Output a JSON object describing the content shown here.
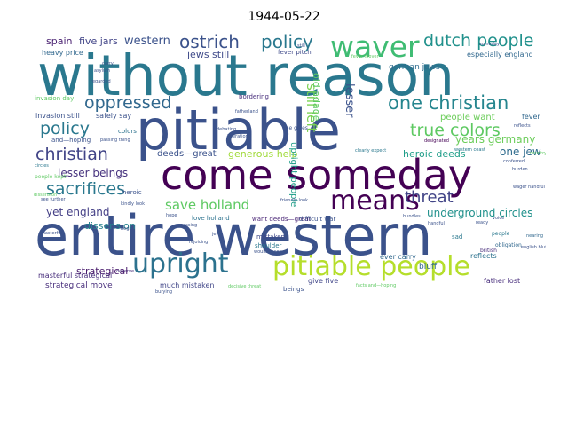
{
  "title": "1944-05-22",
  "words": [
    {
      "text": "without reason",
      "color": "#2a788e"
    },
    {
      "text": "pitiable",
      "color": "#3b528b"
    },
    {
      "text": "entire western",
      "color": "#3b528b"
    },
    {
      "text": "come someday",
      "color": "#440154"
    },
    {
      "text": "waver",
      "color": "#3fbc73"
    },
    {
      "text": "upright",
      "color": "#2c728e"
    },
    {
      "text": "pitiable people",
      "color": "#b5de2b"
    },
    {
      "text": "means",
      "color": "#440154"
    },
    {
      "text": "ostrich",
      "color": "#3b528b"
    },
    {
      "text": "policy",
      "color": "#2a788e"
    },
    {
      "text": "dutch people",
      "color": "#21918c"
    },
    {
      "text": "one christian",
      "color": "#25858e"
    },
    {
      "text": "true colors",
      "color": "#5ec962"
    },
    {
      "text": "policy",
      "color": "#2a788e"
    },
    {
      "text": "oppressed",
      "color": "#31688e"
    },
    {
      "text": "christian",
      "color": "#414487"
    },
    {
      "text": "sacrifices",
      "color": "#2a788e"
    },
    {
      "text": "save holland",
      "color": "#5ec962"
    },
    {
      "text": "threat",
      "color": "#414487"
    },
    {
      "text": "western",
      "color": "#3b528b"
    },
    {
      "text": "five jars",
      "color": "#414487"
    },
    {
      "text": "spain",
      "color": "#481f70"
    },
    {
      "text": "jews still",
      "color": "#3e4989"
    },
    {
      "text": "people want",
      "color": "#6ccd5a"
    },
    {
      "text": "years germany",
      "color": "#6ccd5a"
    },
    {
      "text": "one jew",
      "color": "#2f6c8e"
    },
    {
      "text": "heroic deeds",
      "color": "#1f9e89"
    },
    {
      "text": "generous help",
      "color": "#a0da39"
    },
    {
      "text": "deeds—great",
      "color": "#3b528b"
    },
    {
      "text": "lesser beings",
      "color": "#46327e"
    },
    {
      "text": "yet england",
      "color": "#433e85"
    },
    {
      "text": "dissension",
      "color": "#26828e"
    },
    {
      "text": "underground circles",
      "color": "#21918c"
    },
    {
      "text": "strategical",
      "color": "#481a6c"
    },
    {
      "text": "masterful strategical",
      "color": "#472d7b"
    },
    {
      "text": "strategical move",
      "color": "#472d7b"
    },
    {
      "text": "much mistaken",
      "color": "#404688"
    },
    {
      "text": "give five",
      "color": "#404688"
    },
    {
      "text": "still left",
      "color": "#7ad151"
    },
    {
      "text": "old adage",
      "color": "#5ec962"
    },
    {
      "text": "lesser",
      "color": "#3b528b"
    },
    {
      "text": "upright people",
      "color": "#1f9e89"
    },
    {
      "text": "german jews",
      "color": "#2f6c8e"
    },
    {
      "text": "especially england",
      "color": "#31688e"
    },
    {
      "text": "fever pitch",
      "color": "#3e4989"
    },
    {
      "text": "heavy price",
      "color": "#31688e"
    },
    {
      "text": "invasion day",
      "color": "#5ec962"
    },
    {
      "text": "invasion still",
      "color": "#3b528b"
    },
    {
      "text": "safely say",
      "color": "#3b528b"
    },
    {
      "text": "and—hoping",
      "color": "#3b528b"
    },
    {
      "text": "people kept",
      "color": "#5ec962"
    },
    {
      "text": "love holland",
      "color": "#2c728e"
    },
    {
      "text": "want deeds—great",
      "color": "#482475"
    },
    {
      "text": "difficult war",
      "color": "#3b528b"
    },
    {
      "text": "mistaken",
      "color": "#3e4989"
    },
    {
      "text": "shoulder",
      "color": "#2a788e"
    },
    {
      "text": "bluff",
      "color": "#31688e"
    },
    {
      "text": "ever carry",
      "color": "#31688e"
    },
    {
      "text": "reflects",
      "color": "#2c728e"
    },
    {
      "text": "father lost",
      "color": "#472d7b"
    },
    {
      "text": "fever",
      "color": "#31688e"
    },
    {
      "text": "sad",
      "color": "#2a788e"
    },
    {
      "text": "beings",
      "color": "#3b528b"
    },
    {
      "text": "heroic",
      "color": "#3b528b"
    },
    {
      "text": "colors",
      "color": "#2c728e"
    },
    {
      "text": "bordering",
      "color": "#472d7b"
    },
    {
      "text": "western coast",
      "color": "#2a788e"
    },
    {
      "text": "one gives",
      "color": "#3b528b"
    },
    {
      "text": "nearing",
      "color": "#31688e"
    },
    {
      "text": "people",
      "color": "#2a788e"
    },
    {
      "text": "british",
      "color": "#472d7b"
    },
    {
      "text": "obligation",
      "color": "#31688e"
    },
    {
      "text": "designated",
      "color": "#440154"
    },
    {
      "text": "clearly expect",
      "color": "#2a788e"
    },
    {
      "text": "fatherland",
      "color": "#3b528b"
    },
    {
      "text": "liberation",
      "color": "#3b528b"
    },
    {
      "text": "debating",
      "color": "#3b528b"
    },
    {
      "text": "passing thing",
      "color": "#3b528b"
    },
    {
      "text": "country sacrifices",
      "color": "#5ec962"
    },
    {
      "text": "circles",
      "color": "#2a788e"
    },
    {
      "text": "hope",
      "color": "#3b528b"
    },
    {
      "text": "deserve",
      "color": "#472d7b"
    },
    {
      "text": "would deserve",
      "color": "#3b528b"
    },
    {
      "text": "bundles",
      "color": "#3b528b"
    },
    {
      "text": "handful",
      "color": "#3b528b"
    },
    {
      "text": "jew",
      "color": "#3b528b"
    },
    {
      "text": "kindly look",
      "color": "#3b528b"
    },
    {
      "text": "friendly look",
      "color": "#3b528b"
    },
    {
      "text": "rejoicing",
      "color": "#3b528b"
    },
    {
      "text": "burying",
      "color": "#3b528b"
    },
    {
      "text": "fatherlandale",
      "color": "#3b528b"
    },
    {
      "text": "decisive threat",
      "color": "#5ec962"
    },
    {
      "text": "facts and—hoping",
      "color": "#5ec962"
    },
    {
      "text": "dissension",
      "color": "#5ec962"
    },
    {
      "text": "regarded",
      "color": "#3b528b"
    },
    {
      "text": "asylum",
      "color": "#3b528b"
    },
    {
      "text": "carry",
      "color": "#3b528b"
    },
    {
      "text": "someday",
      "color": "#3b528b"
    },
    {
      "text": "fever mover",
      "color": "#5ec962"
    },
    {
      "text": "still",
      "color": "#3b528b"
    },
    {
      "text": "reflects",
      "color": "#3b528b"
    },
    {
      "text": "conferred",
      "color": "#3b528b"
    },
    {
      "text": "burden",
      "color": "#3b528b"
    },
    {
      "text": "ready",
      "color": "#3b528b"
    },
    {
      "text": "voice",
      "color": "#3b528b"
    },
    {
      "text": "begin",
      "color": "#3b528b"
    },
    {
      "text": "wager handful",
      "color": "#3b528b"
    },
    {
      "text": "english bluff",
      "color": "#3b528b"
    },
    {
      "text": "one",
      "color": "#3b528b"
    },
    {
      "text": "masterful",
      "color": "#3b528b"
    },
    {
      "text": "passing",
      "color": "#3b528b"
    },
    {
      "text": "see further",
      "color": "#3b528b"
    }
  ]
}
